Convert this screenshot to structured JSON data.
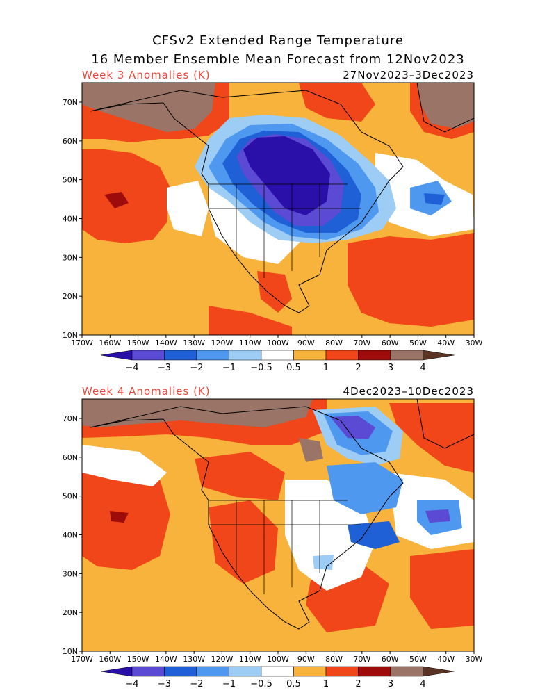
{
  "header": {
    "title_line1": "CFSv2 Extended Range Temperature",
    "title_line2": "16 Member Ensemble Mean Forecast from 12Nov2023"
  },
  "panels": [
    {
      "label": "Week 3 Anomalies (K)",
      "dates": "27Nov2023–3Dec2023"
    },
    {
      "label": "Week 4 Anomalies (K)",
      "dates": "4Dec2023–10Dec2023"
    }
  ],
  "axes": {
    "lon_labels": [
      "170W",
      "160W",
      "150W",
      "140W",
      "130W",
      "120W",
      "110W",
      "100W",
      "90W",
      "80W",
      "70W",
      "60W",
      "50W",
      "40W",
      "30W"
    ],
    "lat_labels": [
      "70N",
      "60N",
      "50N",
      "40N",
      "30N",
      "20N",
      "10N"
    ]
  },
  "colorbar": {
    "labels": [
      "−4",
      "−3",
      "−2",
      "−1",
      "−0.5",
      "0.5",
      "1",
      "2",
      "3",
      "4"
    ],
    "colors": [
      "#2a0fa8",
      "#5b4ad4",
      "#1f60d6",
      "#4f98f0",
      "#9dcdf5",
      "#ffffff",
      "#f7b33b",
      "#f04619",
      "#9e0b0b",
      "#9a7466",
      "#5a3324"
    ]
  },
  "palette": {
    "strong_warm_brown": "#9a7466",
    "dark_brown": "#5a3324",
    "dark_red": "#9e0b0b",
    "red": "#f04619",
    "orange": "#f7b33b",
    "light_blue": "#9dcdf5",
    "mid_blue": "#4f98f0",
    "blue": "#1f60d6",
    "violet": "#5b4ad4",
    "deep_violet": "#2a0fa8",
    "title_red": "#e8473c"
  }
}
